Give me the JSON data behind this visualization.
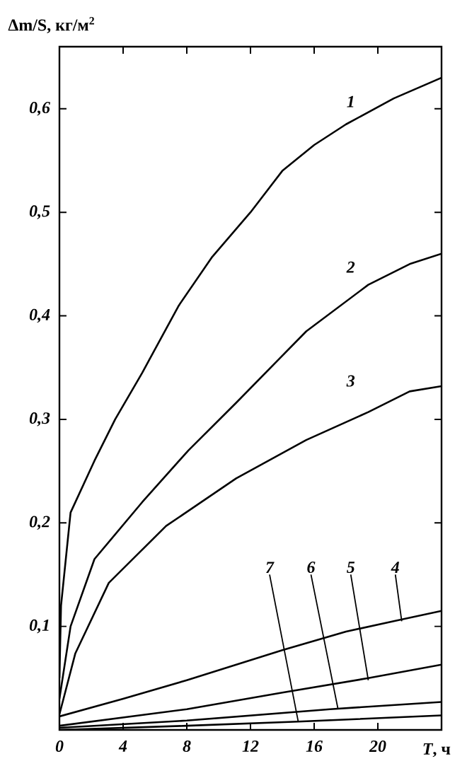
{
  "chart_data": {
    "type": "line",
    "xlabel": "*T*, ч",
    "ylabel": "Δm/S, кг/м$^{2}$",
    "xlim": [
      0,
      24
    ],
    "ylim": [
      0,
      0.66
    ],
    "xticks": [
      0,
      4,
      8,
      12,
      16,
      20
    ],
    "yticks": [
      {
        "value": 0.1,
        "label": "0,1"
      },
      {
        "value": 0.2,
        "label": "0,2"
      },
      {
        "value": 0.3,
        "label": "0,3"
      },
      {
        "value": 0.4,
        "label": "0,4"
      },
      {
        "value": 0.5,
        "label": "0,5"
      },
      {
        "value": 0.6,
        "label": "0,6"
      }
    ],
    "series": [
      {
        "name": "1",
        "color": "#000000",
        "x": [
          0,
          0.1,
          0.7,
          2.2,
          3.5,
          5.2,
          7.5,
          9.6,
          12,
          14,
          16,
          18,
          21,
          24
        ],
        "values": [
          0.05,
          0.12,
          0.21,
          0.26,
          0.3,
          0.345,
          0.41,
          0.457,
          0.5,
          0.54,
          0.565,
          0.585,
          0.61,
          0.63
        ]
      },
      {
        "name": "2",
        "color": "#000000",
        "x": [
          0,
          0.7,
          2.2,
          5.2,
          8.1,
          11.1,
          15.5,
          19.4,
          22,
          24
        ],
        "values": [
          0.03,
          0.1,
          0.165,
          0.22,
          0.27,
          0.316,
          0.385,
          0.43,
          0.45,
          0.46
        ]
      },
      {
        "name": "3",
        "color": "#000000",
        "x": [
          0,
          1,
          3.1,
          6.7,
          11.1,
          15.5,
          19.4,
          22,
          24
        ],
        "values": [
          0.015,
          0.074,
          0.142,
          0.197,
          0.243,
          0.28,
          0.307,
          0.327,
          0.332
        ]
      },
      {
        "name": "4",
        "color": "#000000",
        "x": [
          0,
          4,
          8,
          14,
          18,
          21,
          24
        ],
        "values": [
          0.013,
          0.03,
          0.048,
          0.077,
          0.095,
          0.105,
          0.115
        ]
      },
      {
        "name": "5",
        "color": "#000000",
        "x": [
          0,
          8,
          14,
          19.4,
          24
        ],
        "values": [
          0.004,
          0.02,
          0.036,
          0.05,
          0.063
        ]
      },
      {
        "name": "6",
        "color": "#000000",
        "x": [
          0,
          8,
          17,
          24
        ],
        "values": [
          0.002,
          0.009,
          0.02,
          0.027
        ]
      },
      {
        "name": "7",
        "color": "#000000",
        "x": [
          0,
          8,
          15,
          24
        ],
        "values": [
          0,
          0.004,
          0.008,
          0.014
        ]
      }
    ]
  }
}
